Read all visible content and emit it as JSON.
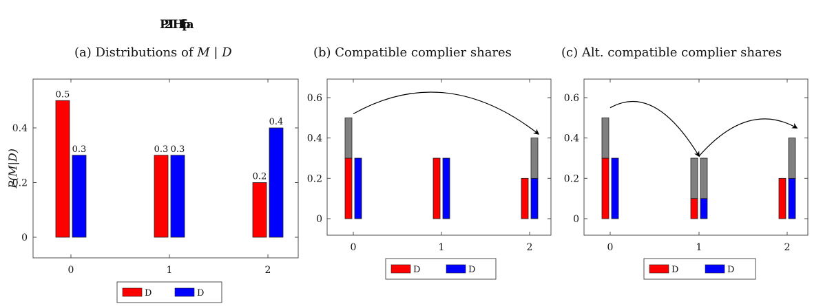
{
  "header": {
    "overprinted_title": "P2LHfffpa"
  },
  "colors": {
    "red": "#ff0000",
    "blue": "#0000ff",
    "gray": "#808080",
    "frame": "#4d4d4d"
  },
  "chart_data": [
    {
      "id": "a",
      "type": "bar",
      "title": "(a) Distributions of M | D",
      "title_parts": {
        "prefix": "(a) Distributions of ",
        "var_m": "M",
        "sep": " | ",
        "var_d": "D"
      },
      "ylabel": "P(M|D)",
      "xlabel": "",
      "categories": [
        "0",
        "1",
        "2"
      ],
      "x_ticks": [
        "0",
        "1",
        "2"
      ],
      "y_ticks": [
        "0",
        "0.2",
        "0.4"
      ],
      "ylim": [
        -0.08,
        0.56
      ],
      "series": [
        {
          "color": "red",
          "values": [
            0.5,
            0.3,
            0.2
          ],
          "labels": [
            "0.5",
            "0.3",
            "0.2"
          ]
        },
        {
          "color": "blue",
          "values": [
            0.3,
            0.3,
            0.4
          ],
          "labels": [
            "0.3",
            "0.3",
            "0.4"
          ]
        }
      ],
      "legend": {
        "placement": "below",
        "entries": [
          "D",
          "D"
        ]
      }
    },
    {
      "id": "b",
      "type": "bar",
      "title": "(b) Compatible complier shares",
      "xlabel": "",
      "ylabel": "",
      "categories": [
        "0",
        "1",
        "2"
      ],
      "x_ticks": [
        "0",
        "1",
        "2"
      ],
      "y_ticks": [
        "0",
        "0.2",
        "0.4",
        "0.6"
      ],
      "ylim": [
        -0.09,
        0.7
      ],
      "stacked": true,
      "series": [
        {
          "color": "red",
          "values": [
            0.3,
            0.3,
            0.2
          ],
          "top_gray": [
            0.2,
            0.0,
            0.0
          ]
        },
        {
          "color": "blue",
          "values": [
            0.3,
            0.3,
            0.2
          ],
          "top_gray": [
            0.0,
            0.0,
            0.2
          ]
        }
      ],
      "arrows": [
        {
          "from": [
            0,
            0.52
          ],
          "to": [
            2.1,
            0.42
          ]
        }
      ],
      "legend": {
        "placement": "below",
        "entries": [
          "D",
          "D"
        ]
      }
    },
    {
      "id": "c",
      "type": "bar",
      "title": "(c) Alt. compatible complier shares",
      "xlabel": "",
      "ylabel": "",
      "categories": [
        "0",
        "1",
        "2"
      ],
      "x_ticks": [
        "0",
        "1",
        "2"
      ],
      "y_ticks": [
        "0",
        "0.2",
        "0.4",
        "0.6"
      ],
      "ylim": [
        -0.09,
        0.7
      ],
      "stacked": true,
      "series": [
        {
          "color": "red",
          "values": [
            0.3,
            0.1,
            0.2
          ],
          "top_gray": [
            0.2,
            0.2,
            0.0
          ]
        },
        {
          "color": "blue",
          "values": [
            0.3,
            0.1,
            0.2
          ],
          "top_gray": [
            0.0,
            0.2,
            0.2
          ]
        }
      ],
      "arrows": [
        {
          "from": [
            0,
            0.55
          ],
          "to": [
            1.0,
            0.31
          ]
        },
        {
          "from": [
            1.0,
            0.31
          ],
          "to": [
            2.1,
            0.45
          ]
        }
      ],
      "legend": {
        "placement": "below",
        "entries": [
          "D",
          "D"
        ]
      }
    }
  ]
}
